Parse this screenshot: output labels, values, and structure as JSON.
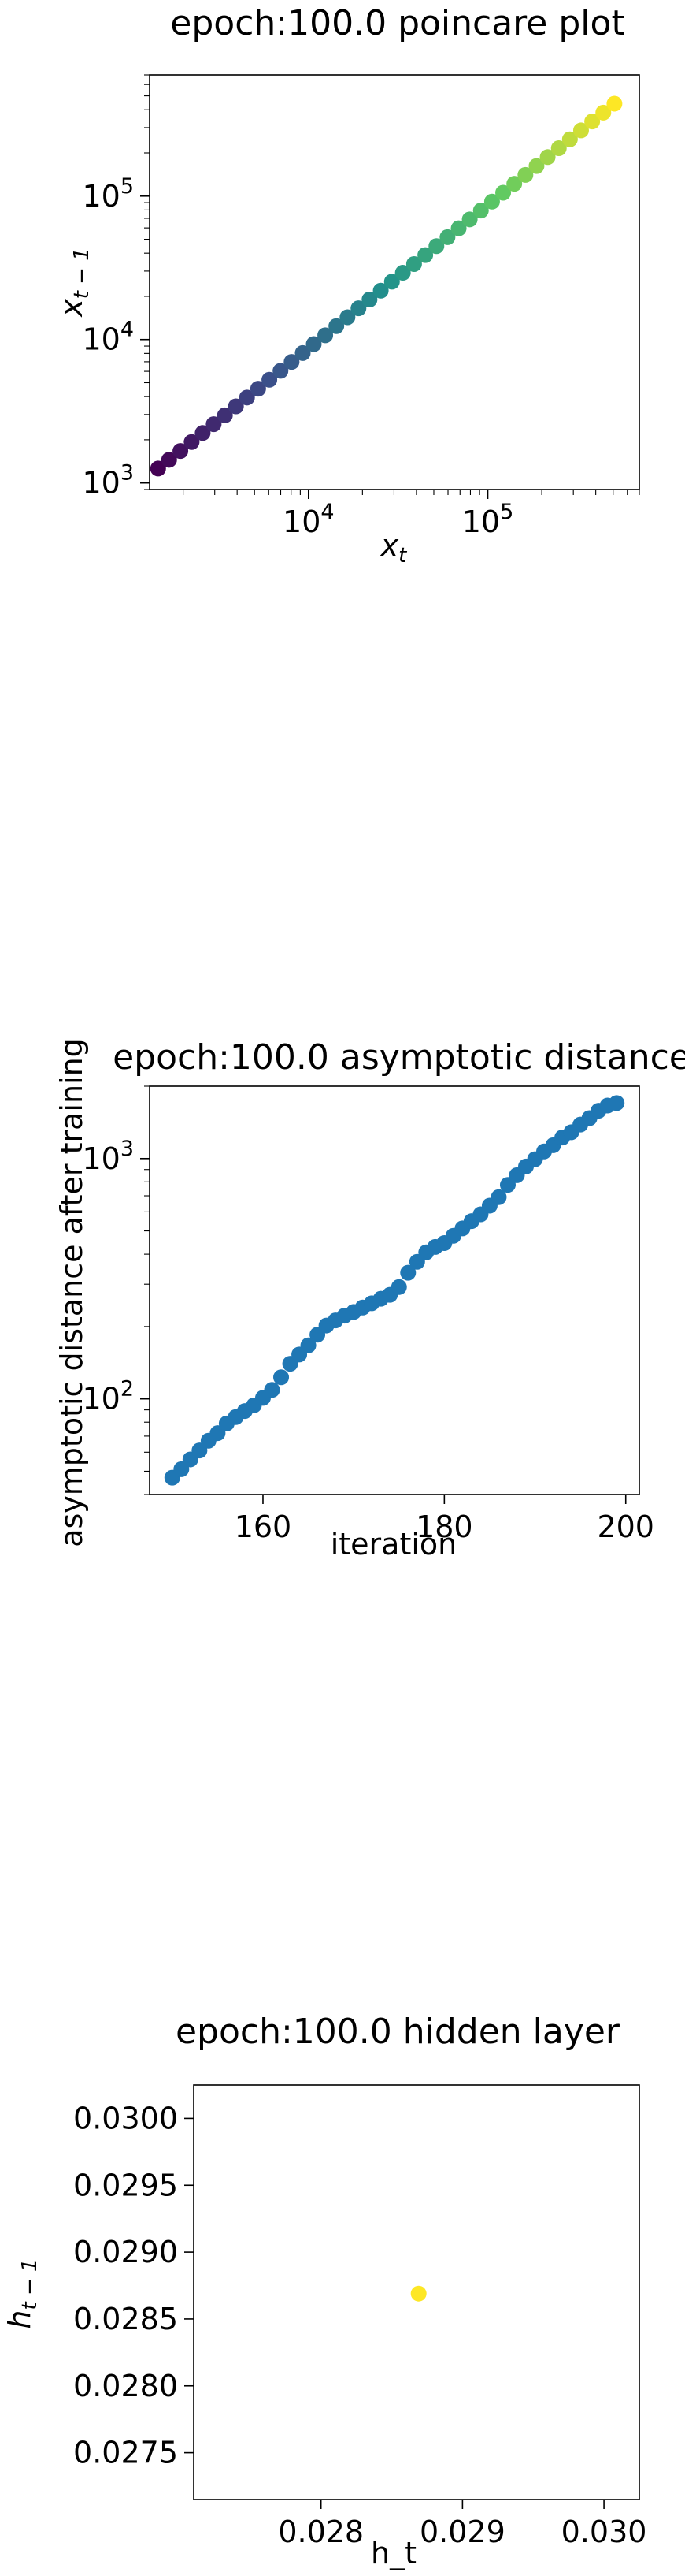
{
  "chart_data": [
    {
      "type": "scatter",
      "title": "epoch:100.0 poincare plot",
      "xlabel_base": "x",
      "xlabel_sub": "t",
      "ylabel_base": "x",
      "ylabel_sub": "t − 1",
      "xscale": "log",
      "yscale": "log",
      "xlim": [
        1300,
        700000
      ],
      "ylim": [
        900,
        700000
      ],
      "xticks": [
        {
          "base": "10",
          "exp": "4",
          "value": 10000
        },
        {
          "base": "10",
          "exp": "5",
          "value": 100000
        }
      ],
      "yticks": [
        {
          "base": "10",
          "exp": "3",
          "value": 1000
        },
        {
          "base": "10",
          "exp": "4",
          "value": 10000
        },
        {
          "base": "10",
          "exp": "5",
          "value": 100000
        }
      ],
      "colormap": [
        "#440154",
        "#3b528b",
        "#21918c",
        "#5ec962",
        "#fde725"
      ],
      "x": [
        1450,
        1670,
        1930,
        2230,
        2570,
        2960,
        3420,
        3940,
        4540,
        5240,
        6050,
        6980,
        8050,
        9290,
        10700,
        12400,
        14300,
        16500,
        19000,
        21900,
        25300,
        29200,
        33600,
        38800,
        44800,
        51700,
        59600,
        68800,
        79300,
        91500,
        105600,
        121800,
        140500,
        162100,
        187000,
        215700,
        248900,
        287100,
        331200,
        382100,
        440800,
        508500
      ],
      "y": [
        1260,
        1450,
        1670,
        1930,
        2230,
        2570,
        2960,
        3420,
        3940,
        4540,
        5240,
        6050,
        6980,
        8050,
        9290,
        10700,
        12400,
        14300,
        16500,
        19000,
        21900,
        25300,
        29200,
        33600,
        38800,
        44800,
        51700,
        59600,
        68800,
        79300,
        91500,
        105600,
        121800,
        140500,
        162100,
        187000,
        215700,
        248900,
        287100,
        331200,
        382100,
        440800
      ]
    },
    {
      "type": "scatter",
      "title": "epoch:100.0 asymptotic distance",
      "xlabel": "iteration",
      "ylabel": "asymptotic distance after training",
      "xscale": "linear",
      "yscale": "log",
      "xlim": [
        147.5,
        201.5
      ],
      "ylim": [
        40,
        2000
      ],
      "xticks": [
        {
          "label": "160",
          "value": 160
        },
        {
          "label": "180",
          "value": 180
        },
        {
          "label": "200",
          "value": 200
        }
      ],
      "yticks": [
        {
          "base": "10",
          "exp": "2",
          "value": 100
        },
        {
          "base": "10",
          "exp": "3",
          "value": 1000
        }
      ],
      "color": "#1f77b4",
      "x": [
        150,
        151,
        152,
        153,
        154,
        155,
        156,
        157,
        158,
        159,
        160,
        161,
        162,
        163,
        164,
        165,
        166,
        167,
        168,
        169,
        170,
        171,
        172,
        173,
        174,
        175,
        176,
        177,
        178,
        179,
        180,
        181,
        182,
        183,
        184,
        185,
        186,
        187,
        188,
        189,
        190,
        191,
        192,
        193,
        194,
        195,
        196,
        197,
        198,
        199
      ],
      "y": [
        47,
        51,
        56,
        61,
        67,
        72,
        79,
        84,
        89,
        94,
        101,
        109,
        123,
        140,
        153,
        167,
        185,
        202,
        212,
        222,
        230,
        240,
        250,
        261,
        271,
        292,
        335,
        372,
        407,
        429,
        445,
        477,
        512,
        549,
        586,
        637,
        691,
        777,
        853,
        927,
        994,
        1071,
        1136,
        1223,
        1287,
        1385,
        1473,
        1581,
        1662,
        1702
      ]
    },
    {
      "type": "scatter",
      "title": "epoch:100.0 hidden layer",
      "xlabel": "h_t",
      "ylabel_base": "h",
      "ylabel_sub": "t − 1",
      "xscale": "linear",
      "yscale": "linear",
      "xlim": [
        0.0271,
        0.03025
      ],
      "ylim": [
        0.02715,
        0.03025
      ],
      "xticks": [
        {
          "label": "0.028",
          "value": 0.028
        },
        {
          "label": "0.029",
          "value": 0.029
        },
        {
          "label": "0.030",
          "value": 0.03
        }
      ],
      "yticks": [
        {
          "label": "0.0275",
          "value": 0.0275
        },
        {
          "label": "0.0280",
          "value": 0.028
        },
        {
          "label": "0.0285",
          "value": 0.0285
        },
        {
          "label": "0.0290",
          "value": 0.029
        },
        {
          "label": "0.0295",
          "value": 0.0295
        },
        {
          "label": "0.0300",
          "value": 0.03
        }
      ],
      "color": "#fde725",
      "x": [
        0.02869
      ],
      "y": [
        0.02869
      ]
    }
  ]
}
